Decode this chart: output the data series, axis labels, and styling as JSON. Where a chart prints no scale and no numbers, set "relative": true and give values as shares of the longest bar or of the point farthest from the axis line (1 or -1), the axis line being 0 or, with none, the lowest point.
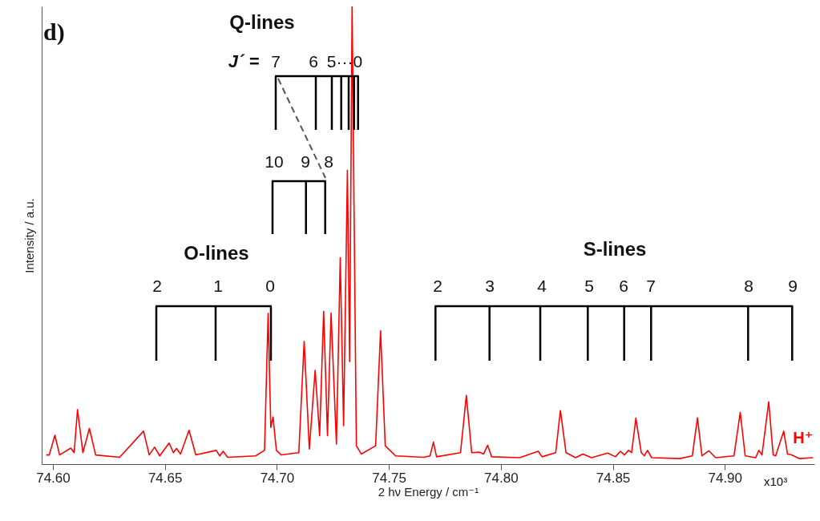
{
  "chart_data": {
    "type": "line",
    "title": "d)",
    "xlabel": "2 hν  Energy / cm⁻¹",
    "ylabel": "Intensity / a.u.",
    "relative": true,
    "grid": false,
    "xlim": [
      74.595,
      74.94
    ],
    "xticks": [
      {
        "value": 74.6,
        "label": "74.60"
      },
      {
        "value": 74.65,
        "label": "74.65"
      },
      {
        "value": 74.7,
        "label": "74.70"
      },
      {
        "value": 74.75,
        "label": "74.75"
      },
      {
        "value": 74.8,
        "label": "74.80"
      },
      {
        "value": 74.85,
        "label": "74.85"
      },
      {
        "value": 74.9,
        "label": "74.90"
      }
    ],
    "series": [
      {
        "name": "H⁺",
        "color": "#ff0000",
        "x": [
          74.597,
          74.5984,
          74.6009,
          74.603,
          74.608,
          74.6095,
          74.611,
          74.6134,
          74.6163,
          74.6191,
          74.6298,
          74.6405,
          74.643,
          74.6454,
          74.6477,
          74.6519,
          74.6538,
          74.6552,
          74.657,
          74.6608,
          74.6638,
          74.6729,
          74.6745,
          74.676,
          74.678,
          74.6905,
          74.6945,
          74.6961,
          74.6973,
          74.6983,
          74.6998,
          74.702,
          74.7098,
          74.7122,
          74.7145,
          74.7171,
          74.7191,
          74.7209,
          74.7226,
          74.7242,
          74.7266,
          74.7283,
          74.7298,
          74.7315,
          74.7325,
          74.7336,
          74.7355,
          74.7377,
          74.7441,
          74.7463,
          74.7484,
          74.753,
          74.7655,
          74.7684,
          74.7699,
          74.7713,
          74.782,
          74.7846,
          74.787,
          74.7905,
          74.7923,
          74.7941,
          74.7959,
          74.8084,
          74.8167,
          74.8184,
          74.8245,
          74.8266,
          74.8291,
          74.8334,
          74.8366,
          74.8405,
          74.8477,
          74.8512,
          74.8534,
          74.8552,
          74.857,
          74.8584,
          74.8603,
          74.8627,
          74.8641,
          74.8655,
          74.8673,
          74.8798,
          74.8855,
          74.8878,
          74.8898,
          74.8929,
          74.8959,
          74.9041,
          74.9069,
          74.9091,
          74.9138,
          74.9152,
          74.9166,
          74.9196,
          74.9216,
          74.9227,
          74.9263,
          74.928,
          74.9298,
          74.9334,
          74.9394
        ],
        "values": [
          0.02,
          0.02,
          0.063,
          0.02,
          0.035,
          0.025,
          0.119,
          0.025,
          0.078,
          0.02,
          0.015,
          0.072,
          0.02,
          0.037,
          0.018,
          0.046,
          0.025,
          0.034,
          0.022,
          0.074,
          0.02,
          0.03,
          0.018,
          0.028,
          0.015,
          0.018,
          0.03,
          0.329,
          0.08,
          0.103,
          0.03,
          0.02,
          0.025,
          0.268,
          0.033,
          0.205,
          0.062,
          0.334,
          0.062,
          0.33,
          0.044,
          0.451,
          0.084,
          0.642,
          0.224,
          1,
          0.04,
          0.022,
          0.04,
          0.291,
          0.04,
          0.018,
          0.015,
          0.018,
          0.048,
          0.016,
          0.025,
          0.15,
          0.025,
          0.026,
          0.022,
          0.041,
          0.016,
          0.014,
          0.028,
          0.016,
          0.025,
          0.117,
          0.025,
          0.014,
          0.022,
          0.014,
          0.024,
          0.016,
          0.028,
          0.02,
          0.03,
          0.025,
          0.1,
          0.025,
          0.018,
          0.03,
          0.014,
          0.012,
          0.018,
          0.101,
          0.018,
          0.029,
          0.014,
          0.018,
          0.113,
          0.018,
          0.014,
          0.03,
          0.02,
          0.136,
          0.02,
          0.018,
          0.072,
          0.022,
          0.02,
          0.012,
          0.014
        ]
      }
    ],
    "annotations": [
      "Q-lines",
      "J´ =",
      "7",
      "6",
      "5···0",
      "10",
      "9",
      "8",
      "O-lines",
      "2",
      "1",
      "0",
      "S-lines",
      "2",
      "3",
      "4",
      "5",
      "6",
      "7",
      "8",
      "9",
      "x10³"
    ]
  }
}
